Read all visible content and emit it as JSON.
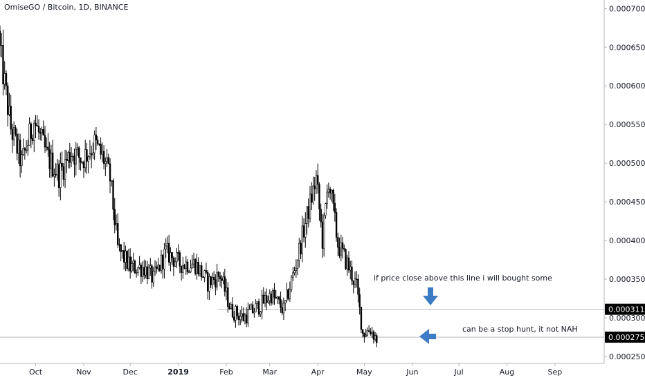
{
  "chart_data": {
    "type": "candlestick",
    "title": "OmiseGO / Bitcoin, 1D, BINANCE",
    "y_axis": {
      "ticks": [
        "0.000250",
        "0.000300",
        "0.000350",
        "0.000400",
        "0.000450",
        "0.000500",
        "0.000550",
        "0.000600",
        "0.000650",
        "0.000700"
      ],
      "range": [
        0.000241,
        0.000711
      ]
    },
    "x_axis": {
      "ticks": [
        {
          "label": "Oct",
          "bold": false
        },
        {
          "label": "Nov",
          "bold": false
        },
        {
          "label": "Dec",
          "bold": false
        },
        {
          "label": "2019",
          "bold": true
        },
        {
          "label": "Feb",
          "bold": false
        },
        {
          "label": "Mar",
          "bold": false
        },
        {
          "label": "Apr",
          "bold": false
        },
        {
          "label": "May",
          "bold": false
        },
        {
          "label": "Jun",
          "bold": false
        },
        {
          "label": "Jul",
          "bold": false
        },
        {
          "label": "Aug",
          "bold": false
        },
        {
          "label": "Sep",
          "bold": false
        }
      ]
    },
    "horizontal_lines": [
      {
        "value": 0.000311,
        "label": "0.000311"
      },
      {
        "value": 0.000275,
        "label": "0.000275"
      }
    ],
    "annotations": [
      {
        "text": "if price close above this line i will bought some",
        "arrow": "down",
        "arrow_color": "#3c7cc4"
      },
      {
        "text": "can be a stop hunt, it not NAH",
        "arrow": "left",
        "arrow_color": "#3c7cc4"
      }
    ],
    "colors": {
      "candle": "#000000",
      "line": "#b2b5be",
      "tag_bg": "#000000"
    },
    "price_path": [
      {
        "date": "2018-09-08",
        "close": 0.000645
      },
      {
        "date": "2018-09-15",
        "close": 0.000545
      },
      {
        "date": "2018-09-22",
        "close": 0.0005
      },
      {
        "date": "2018-09-30",
        "close": 0.000555
      },
      {
        "date": "2018-10-08",
        "close": 0.00051
      },
      {
        "date": "2018-10-16",
        "close": 0.000485
      },
      {
        "date": "2018-10-24",
        "close": 0.000515
      },
      {
        "date": "2018-10-31",
        "close": 0.000505
      },
      {
        "date": "2018-11-08",
        "close": 0.000525
      },
      {
        "date": "2018-11-14",
        "close": 0.000505
      },
      {
        "date": "2018-11-18",
        "close": 0.00048
      },
      {
        "date": "2018-11-23",
        "close": 0.00039
      },
      {
        "date": "2018-12-01",
        "close": 0.000365
      },
      {
        "date": "2018-12-10",
        "close": 0.000365
      },
      {
        "date": "2018-12-16",
        "close": 0.00035
      },
      {
        "date": "2018-12-24",
        "close": 0.000385
      },
      {
        "date": "2019-01-02",
        "close": 0.00037
      },
      {
        "date": "2019-01-12",
        "close": 0.00037
      },
      {
        "date": "2019-01-20",
        "close": 0.000345
      },
      {
        "date": "2019-01-28",
        "close": 0.000355
      },
      {
        "date": "2019-02-04",
        "close": 0.00031
      },
      {
        "date": "2019-02-12",
        "close": 0.0003
      },
      {
        "date": "2019-02-22",
        "close": 0.000315
      },
      {
        "date": "2019-03-02",
        "close": 0.00033
      },
      {
        "date": "2019-03-10",
        "close": 0.00031
      },
      {
        "date": "2019-03-18",
        "close": 0.00037
      },
      {
        "date": "2019-03-26",
        "close": 0.00044
      },
      {
        "date": "2019-03-31",
        "close": 0.00048
      },
      {
        "date": "2019-04-04",
        "close": 0.0004
      },
      {
        "date": "2019-04-08",
        "close": 0.00048
      },
      {
        "date": "2019-04-14",
        "close": 0.000395
      },
      {
        "date": "2019-04-20",
        "close": 0.00037
      },
      {
        "date": "2019-04-26",
        "close": 0.00034
      },
      {
        "date": "2019-04-30",
        "close": 0.00028
      },
      {
        "date": "2019-05-05",
        "close": 0.000285
      },
      {
        "date": "2019-05-09",
        "close": 0.000272
      }
    ]
  }
}
